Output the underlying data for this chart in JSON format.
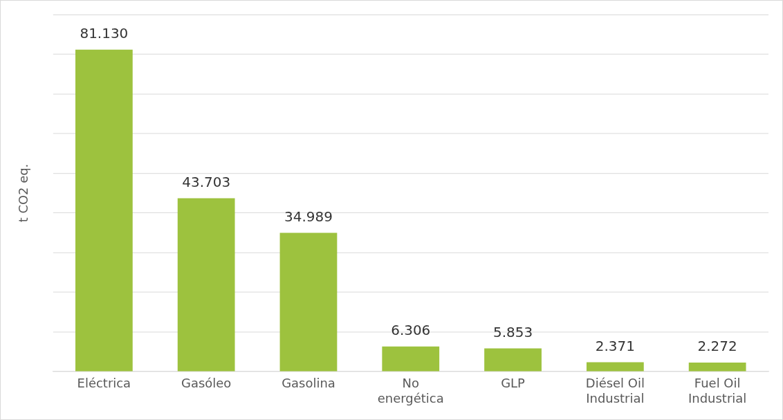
{
  "chart_data": {
    "type": "bar",
    "ylabel": "t CO2 eq.",
    "categories": [
      "Eléctrica",
      "Gasóleo",
      "Gasolina",
      "No energética",
      "GLP",
      "Diésel Oil Industrial",
      "Fuel Oil Industrial"
    ],
    "values": [
      81130,
      43703,
      34989,
      6306,
      5853,
      2371,
      2272
    ],
    "value_labels": [
      "81.130",
      "43.703",
      "34.989",
      "6.306",
      "5.853",
      "2.371",
      "2.272"
    ],
    "color": "#9dc23e",
    "ylim": [
      0,
      90000
    ],
    "yticks": [
      {
        "value": 0,
        "label": null
      },
      {
        "value": 10000,
        "label": null
      },
      {
        "value": 20000,
        "label": null
      },
      {
        "value": 30000,
        "label": null
      },
      {
        "value": 40000,
        "label": null
      },
      {
        "value": 50000,
        "label": null
      },
      {
        "value": 60000,
        "label": null
      },
      {
        "value": 70000,
        "label": null
      },
      {
        "value": 80000,
        "label": null
      },
      {
        "value": 90000,
        "label": null
      }
    ],
    "grid": "y",
    "tick_labels": "x"
  }
}
